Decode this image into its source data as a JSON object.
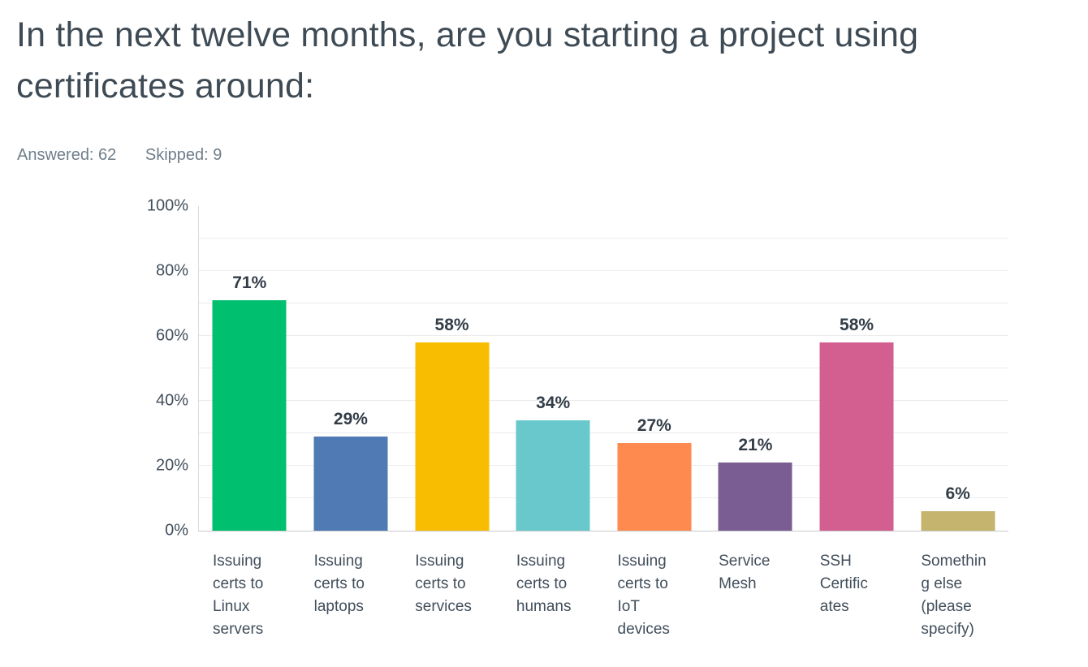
{
  "header": {
    "title_display": "In the next twelve months, are you starting a project using\ncertificates around:",
    "answered": "Answered: 62",
    "skipped": "Skipped: 9"
  },
  "chart_data": {
    "type": "bar",
    "title": "In the next twelve months, are you starting a project using certificates around:",
    "answered_count": 62,
    "skipped_count": 9,
    "categories": [
      "Issuing certs to Linux servers",
      "Issuing certs to laptops",
      "Issuing certs to services",
      "Issuing certs to humans",
      "Issuing certs to IoT devices",
      "Service Mesh",
      "SSH Certificates",
      "Something else (please specify)"
    ],
    "values": [
      71,
      29,
      58,
      34,
      27,
      21,
      58,
      6
    ],
    "value_labels": [
      "71%",
      "29%",
      "58%",
      "34%",
      "27%",
      "21%",
      "58%",
      "6%"
    ],
    "bar_colors": [
      "#00BF6F",
      "#4F7AB3",
      "#F8BD00",
      "#69C8CC",
      "#FE8A4F",
      "#7A5E93",
      "#D35F90",
      "#C4B46E"
    ],
    "xtick_display": [
      "Issuing\ncerts to\nLinux\nservers",
      "Issuing\ncerts to\nlaptops",
      "Issuing\ncerts to\nservices",
      "Issuing\ncerts to\nhumans",
      "Issuing\ncerts to\nIoT\ndevices",
      "Service\nMesh",
      "SSH\nCertific\nates",
      "Somethin\ng else\n(please\nspecify)"
    ],
    "ytick_labels": [
      "0%",
      "20%",
      "40%",
      "60%",
      "80%",
      "100%"
    ],
    "ylim": [
      0,
      100
    ],
    "grid_step": 10,
    "grid": "horizontal light gridlines every 10%, none at 100%",
    "legend": "none",
    "xlabel": "",
    "ylabel": ""
  },
  "colors": {
    "background": "#FFFFFF",
    "title_text": "#3E4A54",
    "meta_text": "#6E7E8A",
    "axis_text": "#414E5B",
    "value_label_text": "#323D47",
    "gridline": "#ECECEC",
    "axis_line": "#DBDBDB",
    "baseline": "#C8CACB"
  }
}
